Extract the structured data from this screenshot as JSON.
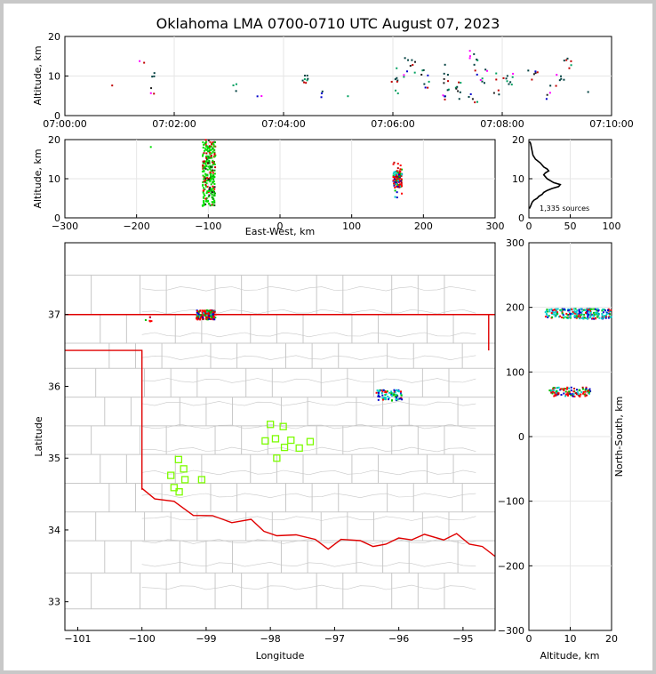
{
  "title": "Oklahoma LMA 0700-0710 UTC August 07, 2023",
  "colors": {
    "background": "#c8c8c8",
    "state_border": "#e00000",
    "county": "#c8c8c8",
    "station": "#7cfc00"
  },
  "chart_data": [
    {
      "type": "scatter",
      "name": "time-height",
      "ylabel": "Altitude, km",
      "xlim": [
        "07:00:00",
        "07:10:00"
      ],
      "ylim": [
        0,
        20
      ],
      "xticks": [
        "07:00:00",
        "07:02:00",
        "07:04:00",
        "07:06:00",
        "07:08:00",
        "07:10:00"
      ],
      "yticks": [
        "0",
        "10",
        "20"
      ],
      "clusters": [
        {
          "t": [
            0.8,
            0.9
          ],
          "z": [
            7,
            9
          ],
          "n": 1
        },
        {
          "t": [
            1.35,
            1.45
          ],
          "z": [
            12,
            14
          ],
          "n": 2
        },
        {
          "t": [
            1.55,
            1.65
          ],
          "z": [
            4,
            12
          ],
          "n": 6
        },
        {
          "t": [
            3.05,
            3.15
          ],
          "z": [
            5,
            12
          ],
          "n": 3
        },
        {
          "t": [
            3.5,
            3.6
          ],
          "z": [
            4,
            6
          ],
          "n": 2
        },
        {
          "t": [
            4.35,
            4.45
          ],
          "z": [
            8,
            11
          ],
          "n": 8
        },
        {
          "t": [
            4.65,
            4.75
          ],
          "z": [
            4,
            7
          ],
          "n": 3
        },
        {
          "t": [
            5.15,
            5.2
          ],
          "z": [
            4,
            6
          ],
          "n": 1
        },
        {
          "t": [
            5.95,
            6.1
          ],
          "z": [
            4,
            12
          ],
          "n": 8
        },
        {
          "t": [
            6.2,
            6.45
          ],
          "z": [
            8,
            15
          ],
          "n": 10
        },
        {
          "t": [
            6.5,
            6.7
          ],
          "z": [
            6,
            14
          ],
          "n": 8
        },
        {
          "t": [
            6.9,
            7.05
          ],
          "z": [
            4,
            13
          ],
          "n": 12
        },
        {
          "t": [
            7.1,
            7.25
          ],
          "z": [
            4,
            11
          ],
          "n": 8
        },
        {
          "t": [
            7.35,
            7.55
          ],
          "z": [
            3,
            17
          ],
          "n": 14
        },
        {
          "t": [
            7.6,
            7.75
          ],
          "z": [
            8,
            12
          ],
          "n": 6
        },
        {
          "t": [
            7.85,
            8.2
          ],
          "z": [
            5,
            12
          ],
          "n": 14
        },
        {
          "t": [
            8.45,
            8.65
          ],
          "z": [
            9,
            12
          ],
          "n": 6
        },
        {
          "t": [
            8.8,
            9.0
          ],
          "z": [
            4,
            12
          ],
          "n": 6
        },
        {
          "t": [
            9.05,
            9.35
          ],
          "z": [
            8,
            15
          ],
          "n": 10
        },
        {
          "t": [
            9.55,
            9.65
          ],
          "z": [
            5,
            7
          ],
          "n": 1
        }
      ]
    },
    {
      "type": "scatter",
      "name": "east-west-height",
      "xlabel": "East-West, km",
      "ylabel": "Altitude, km",
      "xlim": [
        -300,
        300
      ],
      "ylim": [
        0,
        20
      ],
      "xticks": [
        "−300",
        "−200",
        "−100",
        "0",
        "100",
        "200",
        "300"
      ],
      "yticks": [
        "0",
        "10",
        "20"
      ],
      "clusters": [
        {
          "x": [
            -108,
            -90
          ],
          "z": [
            3,
            20
          ],
          "n": 260
        },
        {
          "x": [
            158,
            170
          ],
          "z": [
            5,
            15
          ],
          "n": 120
        },
        {
          "x": [
            -182,
            -178
          ],
          "z": [
            17,
            19
          ],
          "n": 1
        }
      ]
    },
    {
      "type": "line",
      "name": "altitude-histogram",
      "xlim": [
        0,
        100
      ],
      "ylim": [
        0,
        20
      ],
      "xticks": [
        "0",
        "50",
        "100"
      ],
      "yticks": [
        "0",
        "10",
        "20"
      ],
      "annotation": "1,335 sources",
      "x": [
        1,
        2,
        3,
        4,
        5,
        8,
        14,
        18,
        22,
        24,
        20,
        18,
        20,
        22,
        26,
        30,
        38,
        36,
        28,
        22,
        18,
        16,
        12,
        10,
        6,
        4,
        3,
        2,
        1
      ],
      "y": [
        19.5,
        19,
        18,
        17,
        16,
        15,
        14,
        13,
        12.5,
        12,
        11.5,
        11,
        10.5,
        10,
        9.5,
        9,
        8.5,
        8,
        7.5,
        7,
        6.5,
        6,
        5.5,
        5,
        4.5,
        4,
        3.5,
        3,
        2.5
      ]
    },
    {
      "type": "scatter",
      "name": "plan-view-map",
      "xlabel": "Longitude",
      "ylabel": "Latitude",
      "xlim": [
        -101.2,
        -94.5
      ],
      "ylim": [
        32.6,
        38.0
      ],
      "xticks": [
        "−101",
        "−100",
        "−99",
        "−98",
        "−97",
        "−96",
        "−95"
      ],
      "yticks": [
        "33",
        "34",
        "35",
        "36",
        "37"
      ],
      "clusters": [
        {
          "lon": [
            -99.15,
            -98.85
          ],
          "lat": [
            36.93,
            37.06
          ],
          "n": 160
        },
        {
          "lon": [
            -99.95,
            -99.85
          ],
          "lat": [
            36.9,
            36.98
          ],
          "n": 6
        },
        {
          "lon": [
            -96.35,
            -95.95
          ],
          "lat": [
            35.8,
            35.95
          ],
          "n": 80
        }
      ],
      "stations": [
        {
          "lon": -98.0,
          "lat": 35.47
        },
        {
          "lon": -97.8,
          "lat": 35.44
        },
        {
          "lon": -98.08,
          "lat": 35.24
        },
        {
          "lon": -97.92,
          "lat": 35.27
        },
        {
          "lon": -97.68,
          "lat": 35.25
        },
        {
          "lon": -97.78,
          "lat": 35.15
        },
        {
          "lon": -97.55,
          "lat": 35.14
        },
        {
          "lon": -97.38,
          "lat": 35.23
        },
        {
          "lon": -97.9,
          "lat": 35.0
        },
        {
          "lon": -99.43,
          "lat": 34.98
        },
        {
          "lon": -99.35,
          "lat": 34.85
        },
        {
          "lon": -99.55,
          "lat": 34.76
        },
        {
          "lon": -99.33,
          "lat": 34.7
        },
        {
          "lon": -99.07,
          "lat": 34.7
        },
        {
          "lon": -99.5,
          "lat": 34.59
        },
        {
          "lon": -99.42,
          "lat": 34.53
        }
      ]
    },
    {
      "type": "scatter",
      "name": "height-north-south",
      "xlabel": "Altitude, km",
      "ylabel": "North-South, km",
      "xlim": [
        0,
        20
      ],
      "ylim": [
        -300,
        300
      ],
      "xticks": [
        "0",
        "10",
        "20"
      ],
      "yticks": [
        "−300",
        "−200",
        "−100",
        "0",
        "100",
        "200",
        "300"
      ],
      "clusters": [
        {
          "z": [
            4,
            20
          ],
          "y": [
            182,
            198
          ],
          "n": 220
        },
        {
          "z": [
            5,
            15
          ],
          "y": [
            62,
            76
          ],
          "n": 110
        }
      ]
    }
  ]
}
